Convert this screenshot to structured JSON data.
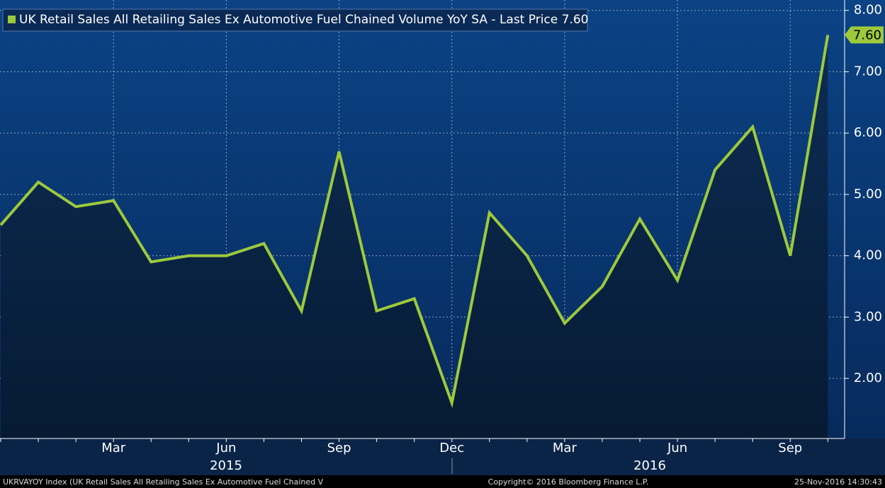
{
  "chart_data": {
    "type": "line",
    "series": [
      {
        "name": "UK Retail Sales All Retailing Sales Ex Automotive Fuel Chained Volume YoY SA - Last Price 7.60",
        "color": "#9dc93b",
        "values": [
          4.5,
          5.2,
          4.8,
          4.9,
          3.9,
          4.0,
          4.0,
          4.2,
          3.1,
          5.7,
          3.1,
          3.3,
          1.6,
          4.7,
          4.0,
          2.9,
          3.5,
          4.6,
          3.6,
          5.4,
          6.1,
          4.0,
          7.6
        ]
      }
    ],
    "categories": [
      null,
      null,
      null,
      "Mar",
      null,
      null,
      "Jun",
      null,
      null,
      "Sep",
      null,
      null,
      "Dec",
      null,
      null,
      "Mar",
      null,
      null,
      "Jun",
      null,
      null,
      "Sep",
      null
    ],
    "years": [
      "2015",
      "2016"
    ],
    "last_value_label": "7.60",
    "ylim": [
      1.02,
      8.17
    ],
    "yticks": [
      {
        "value": 2,
        "label": "2.00"
      },
      {
        "value": 3,
        "label": "3.00"
      },
      {
        "value": 4,
        "label": "4.00"
      },
      {
        "value": 5,
        "label": "5.00"
      },
      {
        "value": 6,
        "label": "6.00"
      },
      {
        "value": 7,
        "label": "7.00"
      },
      {
        "value": 8,
        "label": "8.00"
      }
    ],
    "grid": true,
    "footer": {
      "left": "UKRVAYOY Index (UK Retail Sales All Retailing Sales Ex Automotive Fuel Chained V",
      "center": "Copyright© 2016 Bloomberg Finance L.P.",
      "right": "25-Nov-2016 14:30:43"
    }
  }
}
